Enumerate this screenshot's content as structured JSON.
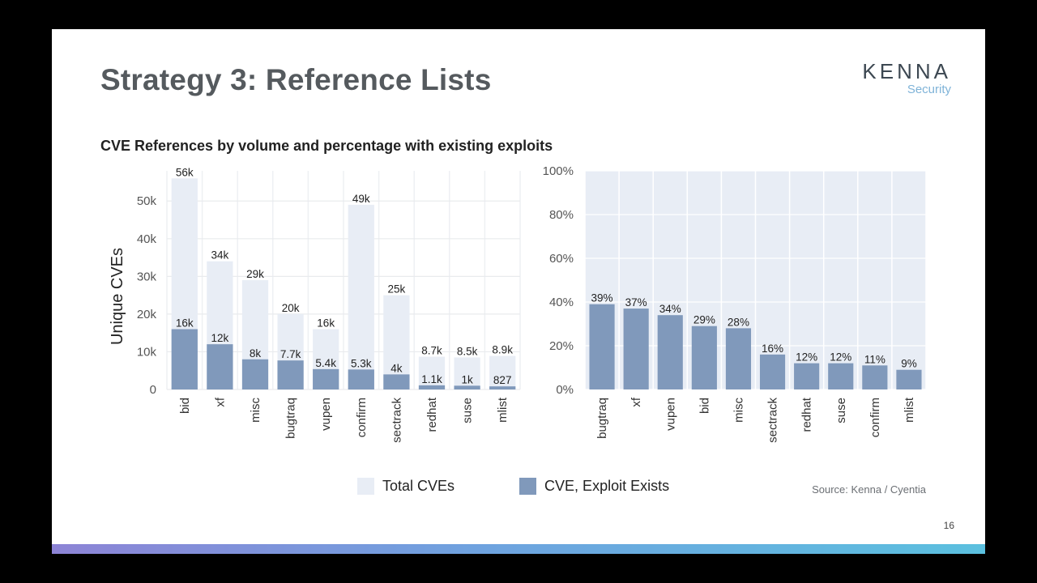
{
  "slide": {
    "title": "Strategy 3: Reference Lists",
    "logo_main": "KENNA",
    "logo_sub": "Security",
    "subtitle": "CVE References by volume and percentage with existing exploits",
    "source": "Source: Kenna / Cyentia",
    "page_number": "16",
    "legend": [
      {
        "label": "Total CVEs",
        "color": "#e8edf5"
      },
      {
        "label": "CVE, Exploit Exists",
        "color": "#8099bb"
      }
    ]
  },
  "chart_data": [
    {
      "type": "bar",
      "ylabel": "Unique CVEs",
      "ylim": [
        0,
        58000
      ],
      "yticks": [
        0,
        10000,
        20000,
        30000,
        40000,
        50000
      ],
      "ytick_labels": [
        "0",
        "10k",
        "20k",
        "30k",
        "40k",
        "50k"
      ],
      "categories": [
        "bid",
        "xf",
        "misc",
        "bugtraq",
        "vupen",
        "confirm",
        "sectrack",
        "redhat",
        "suse",
        "mlist"
      ],
      "series": [
        {
          "name": "Total CVEs",
          "color": "#e8edf5",
          "values": [
            56000,
            34000,
            29000,
            20000,
            16000,
            49000,
            25000,
            8700,
            8500,
            8900
          ],
          "labels": [
            "56k",
            "34k",
            "29k",
            "20k",
            "16k",
            "49k",
            "25k",
            "8.7k",
            "8.5k",
            "8.9k"
          ]
        },
        {
          "name": "CVE, Exploit Exists",
          "color": "#8099bb",
          "values": [
            16000,
            12000,
            8000,
            7700,
            5400,
            5300,
            4000,
            1100,
            1000,
            827
          ],
          "labels": [
            "16k",
            "12k",
            "8k",
            "7.7k",
            "5.4k",
            "5.3k",
            "4k",
            "1.1k",
            "1k",
            "827"
          ]
        }
      ]
    },
    {
      "type": "bar",
      "ylim": [
        0,
        100
      ],
      "yticks": [
        0,
        20,
        40,
        60,
        80,
        100
      ],
      "ytick_labels": [
        "0%",
        "20%",
        "40%",
        "60%",
        "80%",
        "100%"
      ],
      "categories": [
        "bugtraq",
        "xf",
        "vupen",
        "bid",
        "misc",
        "sectrack",
        "redhat",
        "suse",
        "confirm",
        "mlist"
      ],
      "series": [
        {
          "name": "CVE, Exploit Exists",
          "color": "#8099bb",
          "values": [
            39,
            37,
            34,
            29,
            28,
            16,
            12,
            12,
            11,
            9
          ],
          "labels": [
            "39%",
            "37%",
            "34%",
            "29%",
            "28%",
            "16%",
            "12%",
            "12%",
            "11%",
            "9%"
          ]
        }
      ],
      "background_color": "#e8edf5"
    }
  ]
}
